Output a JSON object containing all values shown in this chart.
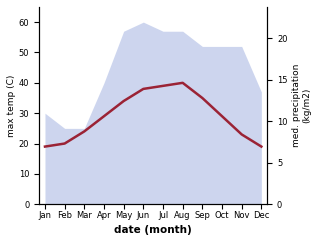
{
  "months": [
    "Jan",
    "Feb",
    "Mar",
    "Apr",
    "May",
    "Jun",
    "Jul",
    "Aug",
    "Sep",
    "Oct",
    "Nov",
    "Dec"
  ],
  "temp": [
    19,
    20,
    24,
    29,
    34,
    38,
    39,
    40,
    35,
    29,
    23,
    19
  ],
  "precip_left_scale": [
    30,
    25,
    25,
    40,
    57,
    60,
    57,
    57,
    52,
    52,
    52,
    37
  ],
  "temp_color": "#9b2335",
  "precip_fill_color": "#b8c4e8",
  "precip_alpha": 0.7,
  "ylim_left": [
    0,
    65
  ],
  "ylim_right": [
    0,
    23.8
  ],
  "yticks_left": [
    0,
    10,
    20,
    30,
    40,
    50,
    60
  ],
  "yticks_right": [
    0,
    5,
    10,
    15,
    20
  ],
  "ylabel_left": "max temp (C)",
  "ylabel_right": "med. precipitation\n(kg/m2)",
  "xlabel": "date (month)",
  "temp_linewidth": 1.8,
  "background": "#ffffff",
  "xlim": [
    -0.3,
    11.3
  ],
  "label_fontsize": 6.5,
  "tick_fontsize": 6.0,
  "xlabel_fontsize": 7.5
}
